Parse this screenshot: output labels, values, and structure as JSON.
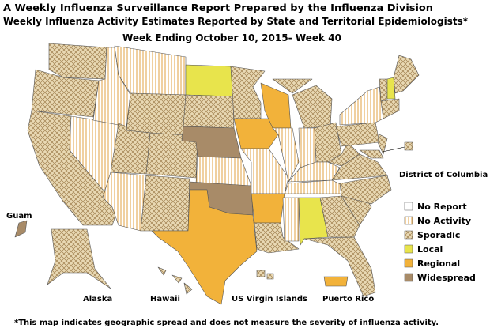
{
  "header": {
    "title": [
      "A Weekly Influenza Surveillance Report Prepared by the Influenza Division",
      "Weekly Influenza Activity Estimates Reported by State and Territorial Epidemiologists*"
    ],
    "subtitle": "Week Ending October 10, 2015- Week 40"
  },
  "legend": [
    "No Report",
    "No Activity",
    "Sporadic",
    "Local",
    "Regional",
    "Widespread"
  ],
  "labels": {
    "guam": "Guam",
    "alaska": "Alaska",
    "hawaii": "Hawaii",
    "usvi": "US Virgin Islands",
    "puerto_rico": "Puerto Rico",
    "dc": "District of Columbia"
  },
  "footnote": "*This map indicates geographic spread and does not measure the severity of influenza activity."
}
